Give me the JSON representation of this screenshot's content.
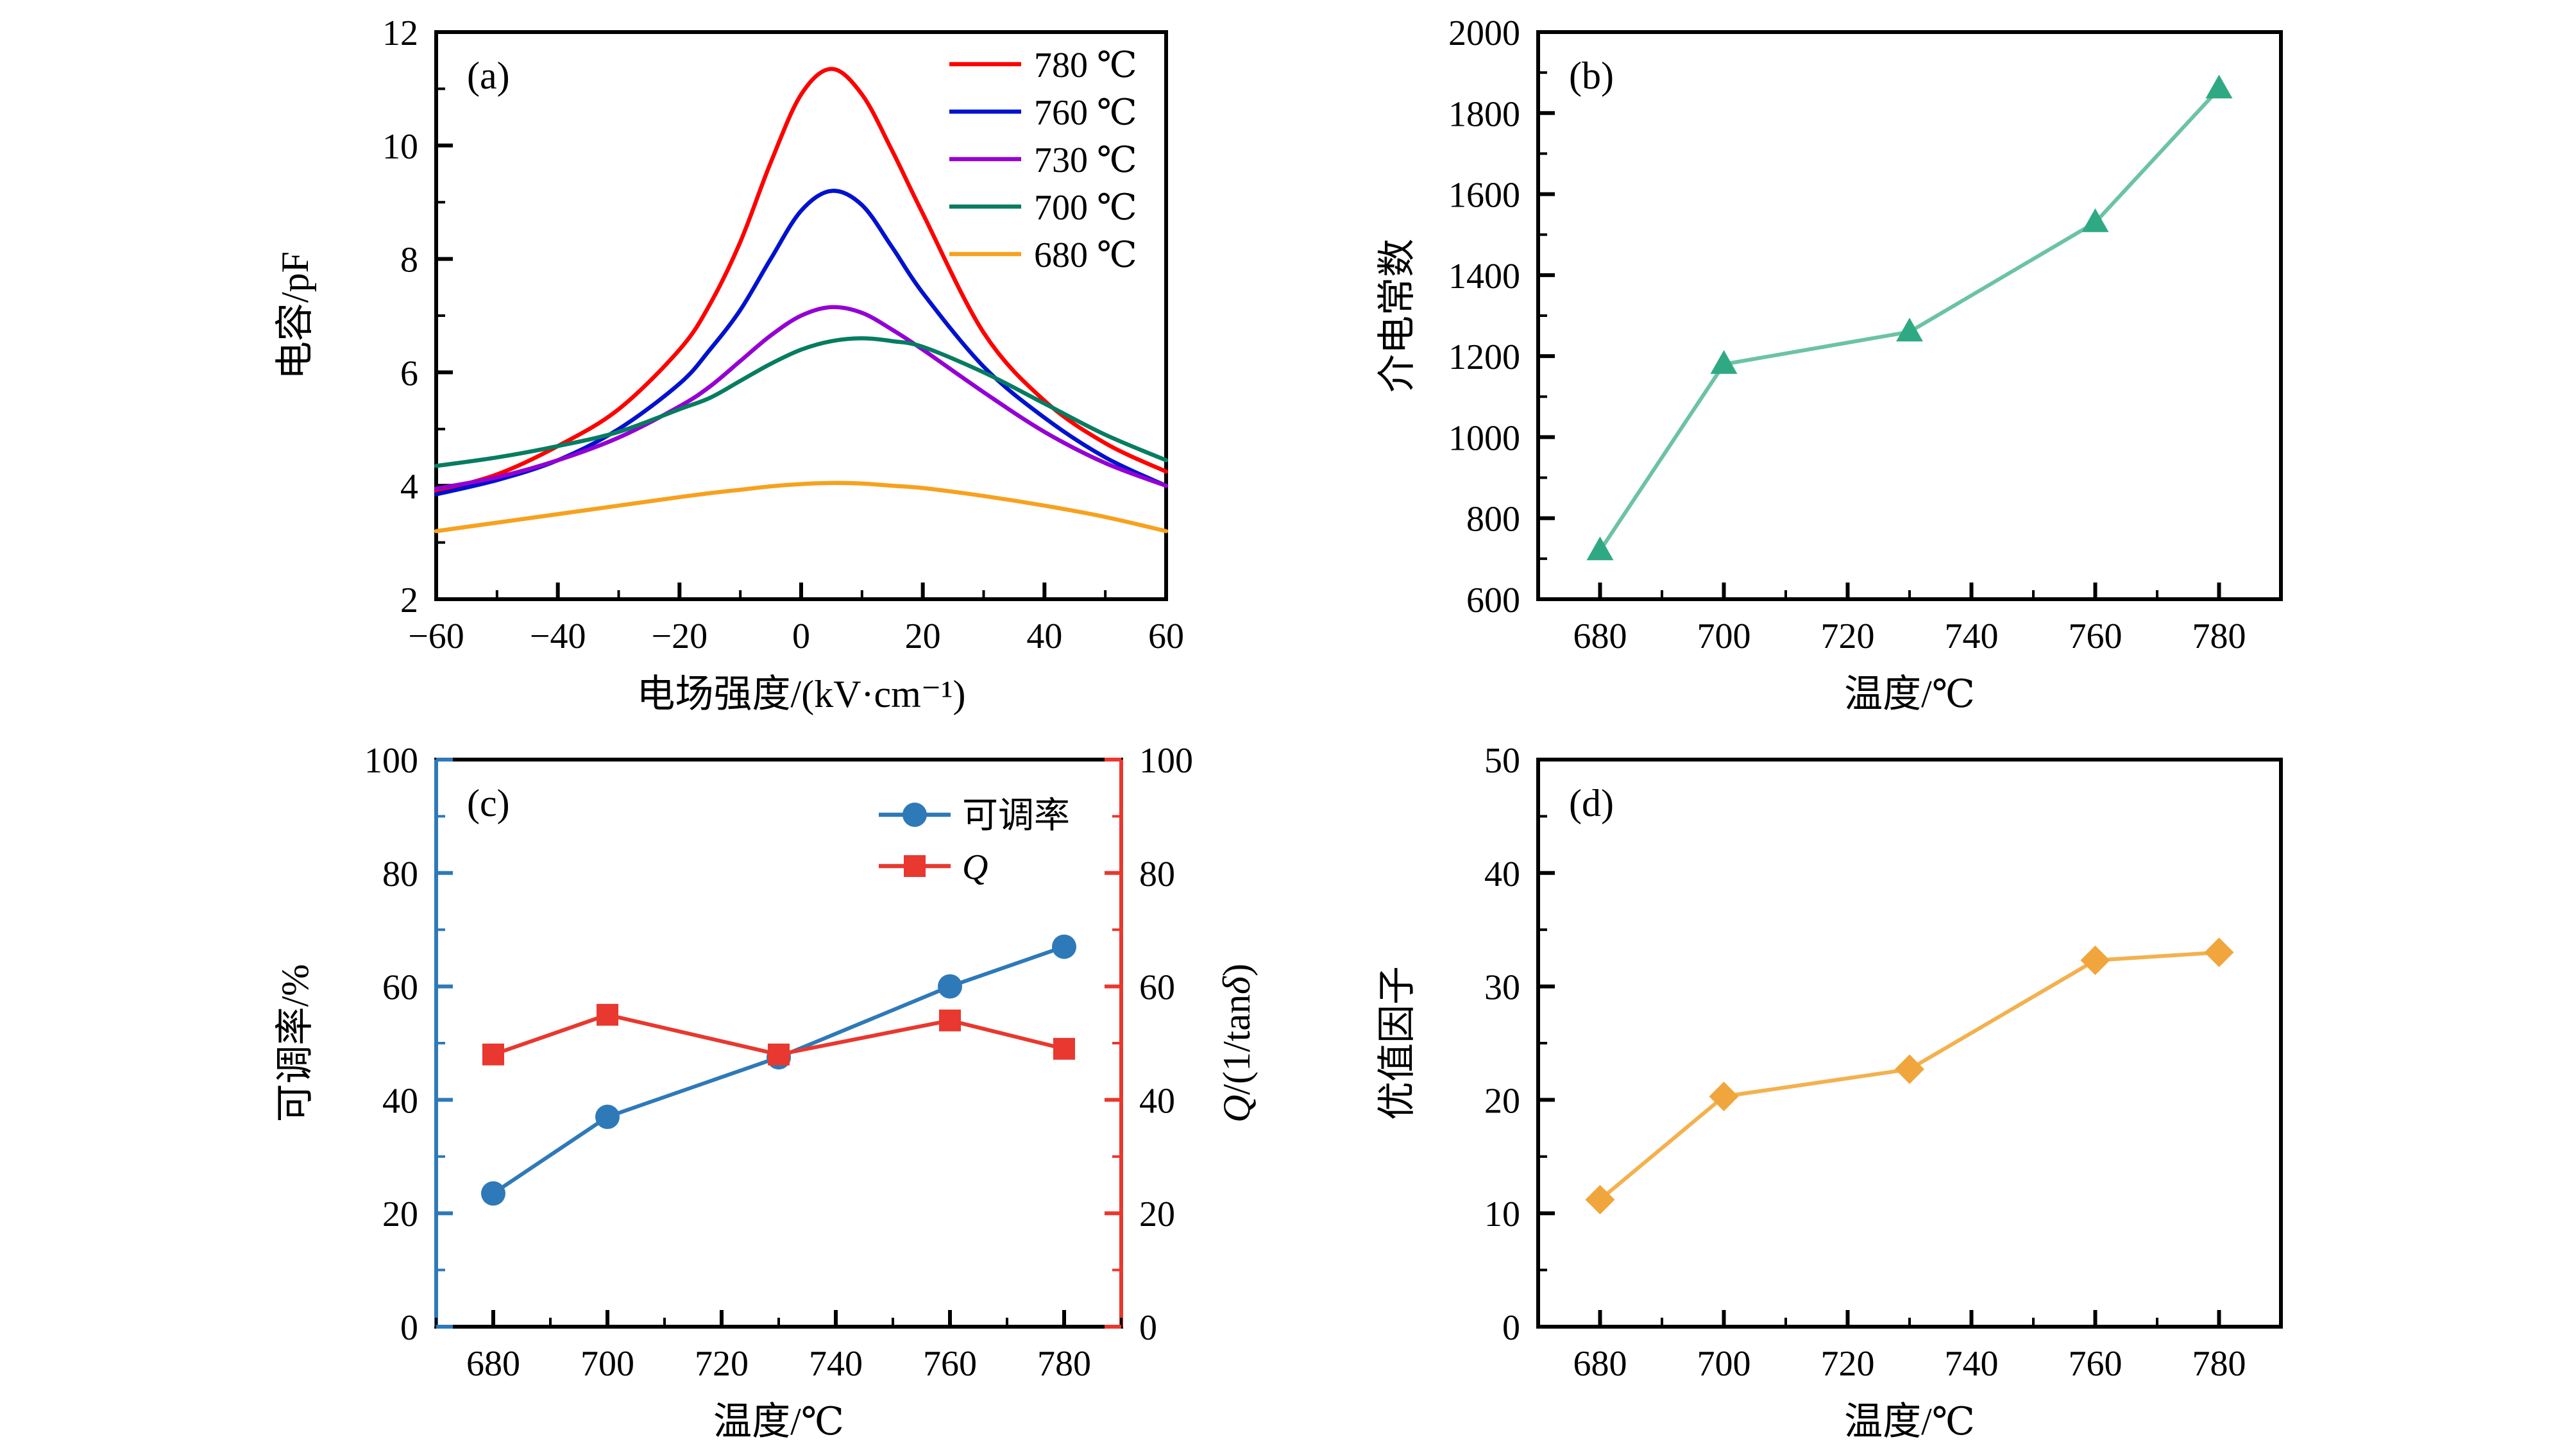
{
  "figure": {
    "background": "#ffffff"
  },
  "chart_data": [
    {
      "type": "line",
      "panel_label": "(a)",
      "xlabel": "电场强度/(kV·cm⁻¹)",
      "ylabel": "电容/pF",
      "xlim": [
        -60,
        60
      ],
      "ylim": [
        2,
        12
      ],
      "xticks": [
        -60,
        -40,
        -20,
        0,
        20,
        40,
        60
      ],
      "yticks": [
        2,
        4,
        6,
        8,
        10,
        12
      ],
      "x_minor": 10,
      "y_minor": 1,
      "grid": false,
      "legend_position": "top-right-inside",
      "x": [
        -60,
        -50,
        -40,
        -30,
        -20,
        -15,
        -10,
        -5,
        0,
        5,
        10,
        15,
        20,
        30,
        40,
        50,
        60
      ],
      "series": [
        {
          "name": "780 ℃",
          "color": "#fe0000",
          "marker": "none",
          "smooth": true,
          "y": [
            3.9,
            4.2,
            4.7,
            5.35,
            6.4,
            7.2,
            8.3,
            9.7,
            10.9,
            11.35,
            10.9,
            9.9,
            8.8,
            6.7,
            5.5,
            4.75,
            4.25
          ]
        },
        {
          "name": "760 ℃",
          "color": "#0012cd",
          "marker": "none",
          "smooth": true,
          "y": [
            3.85,
            4.1,
            4.45,
            5.0,
            5.8,
            6.4,
            7.1,
            8.0,
            8.85,
            9.2,
            8.95,
            8.2,
            7.4,
            6.1,
            5.2,
            4.5,
            4.0
          ]
        },
        {
          "name": "730 ℃",
          "color": "#9400d3",
          "marker": "none",
          "smooth": true,
          "y": [
            3.95,
            4.15,
            4.45,
            4.85,
            5.4,
            5.75,
            6.2,
            6.65,
            7.0,
            7.15,
            7.05,
            6.75,
            6.4,
            5.65,
            4.95,
            4.4,
            4.0
          ]
        },
        {
          "name": "700 ℃",
          "color": "#077c60",
          "marker": "none",
          "smooth": true,
          "y": [
            4.35,
            4.5,
            4.7,
            4.95,
            5.35,
            5.55,
            5.85,
            6.15,
            6.4,
            6.55,
            6.6,
            6.55,
            6.45,
            6.0,
            5.45,
            4.9,
            4.45
          ]
        },
        {
          "name": "680 ℃",
          "color": "#f7a11e",
          "marker": "none",
          "smooth": true,
          "y": [
            3.2,
            3.35,
            3.5,
            3.65,
            3.8,
            3.87,
            3.93,
            3.99,
            4.03,
            4.05,
            4.04,
            4.0,
            3.96,
            3.82,
            3.65,
            3.45,
            3.2
          ]
        }
      ]
    },
    {
      "type": "line",
      "panel_label": "(b)",
      "xlabel": "温度/℃",
      "ylabel": "介电常数",
      "xlim": [
        670,
        790
      ],
      "ylim": [
        600,
        2000
      ],
      "xticks": [
        680,
        700,
        720,
        740,
        760,
        780
      ],
      "yticks": [
        600,
        800,
        1000,
        1200,
        1400,
        1600,
        1800,
        2000
      ],
      "x_minor": 10,
      "y_minor": 100,
      "grid": false,
      "x": [
        680,
        700,
        730,
        760,
        780
      ],
      "series": [
        {
          "name": "介电常数",
          "color": "#2fa983",
          "line_color": "#6cc3a4",
          "marker": "triangle",
          "y": [
            720,
            1180,
            1260,
            1530,
            1860
          ]
        }
      ]
    },
    {
      "type": "line-dual",
      "panel_label": "(c)",
      "xlabel": "温度/℃",
      "ylabel_left": "可调率/%",
      "ylabel_right_segments": [
        {
          "t": "Q",
          "i": true
        },
        {
          "t": "/(1/tan"
        },
        {
          "t": "δ",
          "i": true
        },
        {
          "t": ")"
        }
      ],
      "left_color": "#2e79b8",
      "right_color": "#e8382f",
      "xlim": [
        670,
        790
      ],
      "ylim": [
        0,
        100
      ],
      "ylim_right": [
        0,
        100
      ],
      "xticks": [
        680,
        700,
        720,
        740,
        760,
        780
      ],
      "yticks": [
        0,
        20,
        40,
        60,
        80,
        100
      ],
      "yticks_right": [
        0,
        20,
        40,
        60,
        80,
        100
      ],
      "x_minor": 10,
      "y_minor": 10,
      "grid": false,
      "legend_position": "top-center-inside",
      "x": [
        680,
        700,
        730,
        760,
        780
      ],
      "series": [
        {
          "name": "可调率",
          "axis": "left",
          "color": "#2e79b8",
          "marker": "circle",
          "y": [
            23.5,
            37,
            47.5,
            60,
            67
          ]
        },
        {
          "name": "Q",
          "italic": true,
          "axis": "right",
          "color": "#e8382f",
          "marker": "square",
          "y": [
            48,
            55,
            48,
            54,
            49
          ]
        }
      ]
    },
    {
      "type": "line",
      "panel_label": "(d)",
      "xlabel": "温度/℃",
      "ylabel": "优值因子",
      "xlim": [
        670,
        790
      ],
      "ylim": [
        0,
        50
      ],
      "xticks": [
        680,
        700,
        720,
        740,
        760,
        780
      ],
      "yticks": [
        0,
        10,
        20,
        30,
        40,
        50
      ],
      "x_minor": 10,
      "y_minor": 5,
      "grid": false,
      "x": [
        680,
        700,
        730,
        760,
        780
      ],
      "series": [
        {
          "name": "优值因子",
          "color": "#f0a63c",
          "line_color": "#f3b14e",
          "marker": "diamond",
          "y": [
            11.2,
            20.3,
            22.7,
            32.3,
            33.0
          ]
        }
      ]
    }
  ]
}
